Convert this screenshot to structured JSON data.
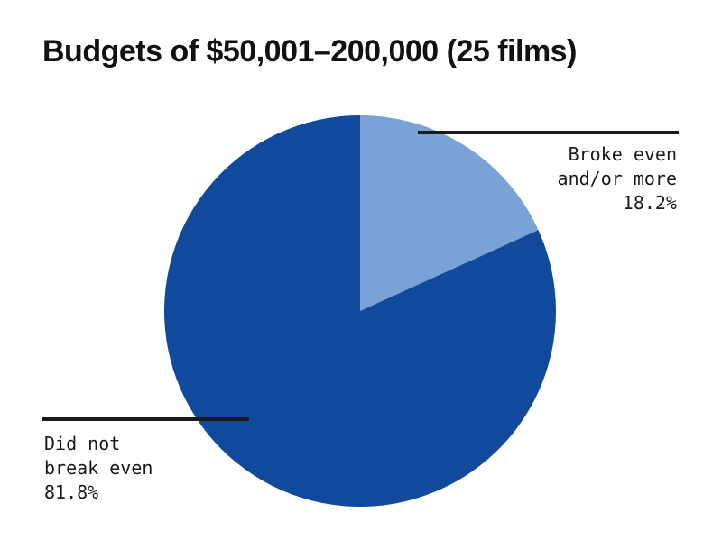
{
  "chart_data": {
    "type": "pie",
    "title": "Budgets of $50,001–200,000 (25 films)",
    "slices": [
      {
        "label_lines": [
          "Broke even",
          "and/or more"
        ],
        "value_label": "18.2%",
        "value": 18.2,
        "color": "#7aa2d6"
      },
      {
        "label_lines": [
          "Did not",
          "break even"
        ],
        "value_label": "81.8%",
        "value": 81.8,
        "color": "#114a9c"
      }
    ],
    "start_angle": "12 o'clock",
    "direction": "clockwise",
    "leader_line_color": "#1a1a1a"
  }
}
